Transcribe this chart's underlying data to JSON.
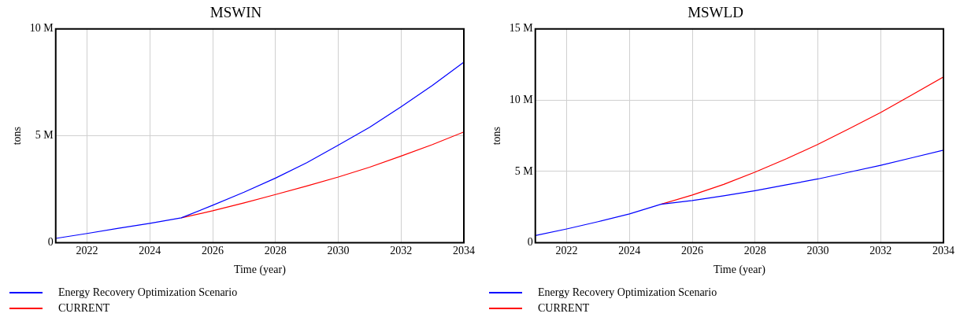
{
  "chart_data": [
    {
      "type": "line",
      "title": "MSWIN",
      "xlabel": "Time (year)",
      "ylabel": "tons",
      "x": [
        2021,
        2022,
        2023,
        2024,
        2025,
        2026,
        2027,
        2028,
        2029,
        2030,
        2031,
        2032,
        2033,
        2034
      ],
      "series": [
        {
          "name": "Energy Recovery Optimization Scenario",
          "color": "#0000ff",
          "values": [
            200000,
            430000,
            670000,
            900000,
            1160000,
            1750000,
            2360000,
            3020000,
            3740000,
            4560000,
            5400000,
            6360000,
            7360000,
            8450000
          ]
        },
        {
          "name": "CURRENT",
          "color": "#ff0000",
          "values": [
            null,
            null,
            null,
            null,
            1160000,
            1490000,
            1860000,
            2250000,
            2650000,
            3070000,
            3530000,
            4050000,
            4590000,
            5180000
          ]
        }
      ],
      "xlim": [
        2021,
        2034
      ],
      "xticks": [
        2022,
        2024,
        2026,
        2028,
        2030,
        2032,
        2034
      ],
      "ylim": [
        0,
        10000000
      ],
      "yticks": [
        0,
        {
          "value": 5000000,
          "label": "5 M"
        },
        {
          "value": 10000000,
          "label": "10 M"
        }
      ],
      "grid": true,
      "legend": "bottom",
      "marker": "none",
      "line_style": "solid"
    },
    {
      "type": "line",
      "title": "MSWLD",
      "xlabel": "Time (year)",
      "ylabel": "tons",
      "x": [
        2021,
        2022,
        2023,
        2024,
        2025,
        2026,
        2027,
        2028,
        2029,
        2030,
        2031,
        2032,
        2033,
        2034
      ],
      "series": [
        {
          "name": "Energy Recovery Optimization Scenario",
          "color": "#0000ff",
          "values": [
            500000,
            960000,
            1470000,
            2020000,
            2690000,
            2960000,
            3290000,
            3650000,
            4060000,
            4470000,
            4950000,
            5430000,
            5960000,
            6490000
          ]
        },
        {
          "name": "CURRENT",
          "color": "#ff0000",
          "values": [
            null,
            null,
            null,
            null,
            2690000,
            3340000,
            4090000,
            4950000,
            5890000,
            6900000,
            8000000,
            9130000,
            10380000,
            11630000
          ]
        }
      ],
      "xlim": [
        2021,
        2034
      ],
      "xticks": [
        2022,
        2024,
        2026,
        2028,
        2030,
        2032,
        2034
      ],
      "ylim": [
        0,
        15000000
      ],
      "yticks": [
        0,
        {
          "value": 5000000,
          "label": "5 M"
        },
        {
          "value": 10000000,
          "label": "10 M"
        },
        {
          "value": 15000000,
          "label": "15 M"
        }
      ],
      "grid": true,
      "legend": "bottom",
      "marker": "none",
      "line_style": "solid"
    }
  ]
}
